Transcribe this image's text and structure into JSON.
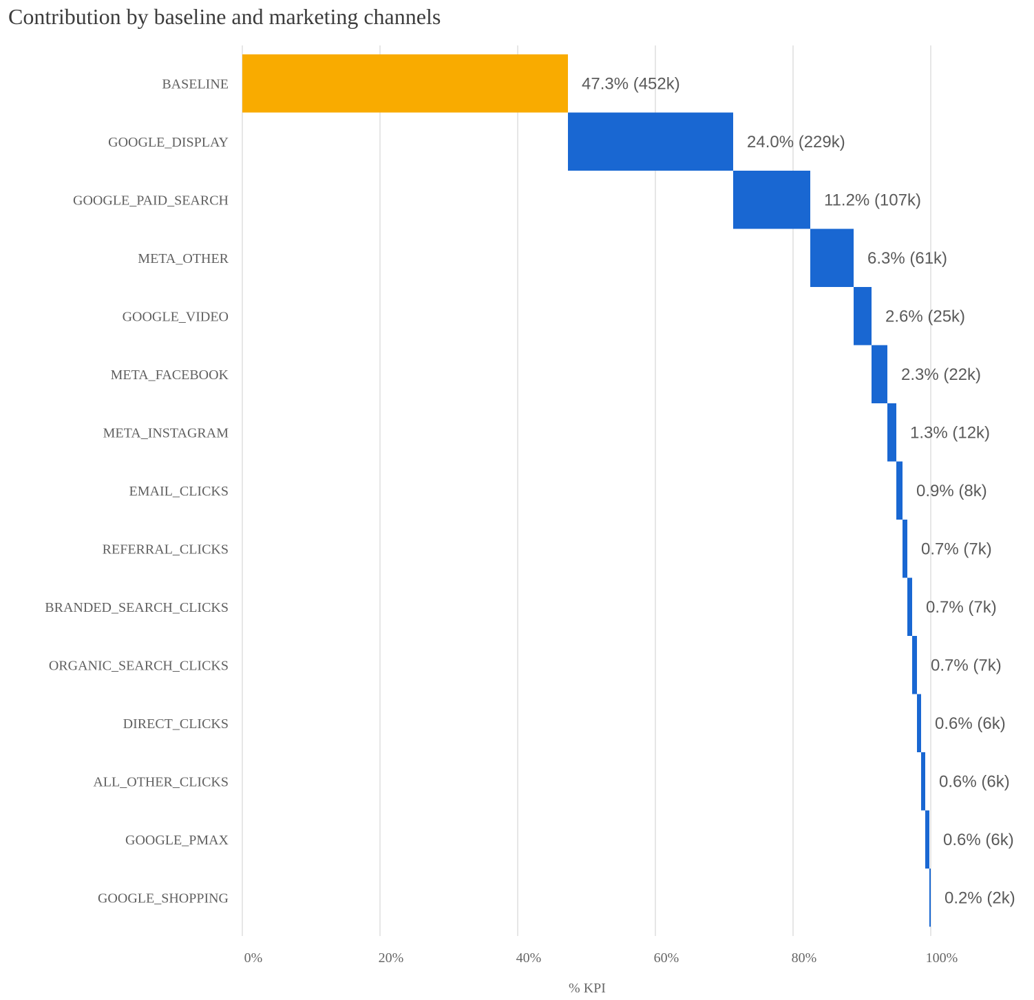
{
  "chart_data": {
    "type": "bar",
    "subtype": "waterfall-horizontal",
    "title": "Contribution by baseline and marketing channels",
    "xlabel": "% KPI",
    "ylabel": "",
    "xlim": [
      0,
      100
    ],
    "x_ticks": [
      "0%",
      "20%",
      "40%",
      "60%",
      "80%",
      "100%"
    ],
    "x_tick_values": [
      0,
      20,
      40,
      60,
      80,
      100
    ],
    "grid": "vertical",
    "legend": "none",
    "colors": {
      "baseline": "#f9ab00",
      "channel": "#1967d2",
      "grid": "#dddddd"
    },
    "categories": [
      "BASELINE",
      "GOOGLE_DISPLAY",
      "GOOGLE_PAID_SEARCH",
      "META_OTHER",
      "GOOGLE_VIDEO",
      "META_FACEBOOK",
      "META_INSTAGRAM",
      "EMAIL_CLICKS",
      "REFERRAL_CLICKS",
      "BRANDED_SEARCH_CLICKS",
      "ORGANIC_SEARCH_CLICKS",
      "DIRECT_CLICKS",
      "ALL_OTHER_CLICKS",
      "GOOGLE_PMAX",
      "GOOGLE_SHOPPING"
    ],
    "values": [
      47.3,
      24.0,
      11.2,
      6.3,
      2.6,
      2.3,
      1.3,
      0.9,
      0.7,
      0.7,
      0.7,
      0.6,
      0.6,
      0.6,
      0.2
    ],
    "labels": [
      "47.3% (452k)",
      "24.0% (229k)",
      "11.2% (107k)",
      "6.3% (61k)",
      "2.6% (25k)",
      "2.3% (22k)",
      "1.3% (12k)",
      "0.9% (8k)",
      "0.7% (7k)",
      "0.7% (7k)",
      "0.7% (7k)",
      "0.6% (6k)",
      "0.6% (6k)",
      "0.6% (6k)",
      "0.2% (2k)"
    ]
  }
}
